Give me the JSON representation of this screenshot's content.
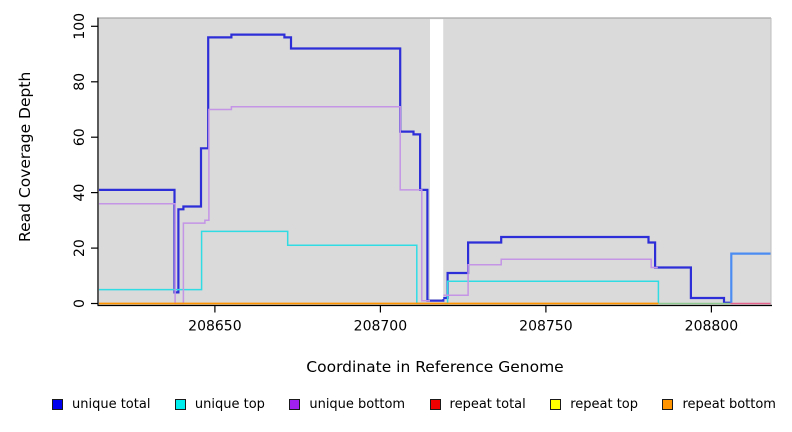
{
  "figure": {
    "xlabel": "Coordinate in Reference Genome",
    "ylabel": "Read Coverage Depth"
  },
  "legend": [
    {
      "label": "unique total",
      "color": "#0000ee"
    },
    {
      "label": "unique top",
      "color": "#00eeee"
    },
    {
      "label": "unique bottom",
      "color": "#a020f0"
    },
    {
      "label": "repeat total",
      "color": "#ee0000"
    },
    {
      "label": "repeat top",
      "color": "#ffff00"
    },
    {
      "label": "repeat bottom",
      "color": "#ff9300"
    }
  ],
  "chart_data": {
    "type": "line",
    "step": true,
    "title": "",
    "xlabel": "Coordinate in Reference Genome",
    "ylabel": "Read Coverage Depth",
    "xlim": [
      208615,
      208818
    ],
    "ylim": [
      0,
      103
    ],
    "x_ticks": [
      208650,
      208700,
      208750,
      208800
    ],
    "y_ticks": [
      0,
      20,
      40,
      60,
      80,
      100
    ],
    "grid": false,
    "legend_position": "bottom",
    "panel_background": "#dadada",
    "gap_region": {
      "x_start": 208715,
      "x_end": 208719,
      "note": "white vertical band with no data"
    },
    "series": [
      {
        "name": "unique total",
        "color": "#0000ee",
        "points": [
          [
            208615,
            41
          ],
          [
            208638,
            41
          ],
          [
            208638,
            4
          ],
          [
            208639,
            4
          ],
          [
            208639,
            34
          ],
          [
            208641,
            34
          ],
          [
            208641,
            35
          ],
          [
            208646,
            35
          ],
          [
            208646,
            56
          ],
          [
            208648,
            56
          ],
          [
            208648,
            96
          ],
          [
            208655,
            96
          ],
          [
            208655,
            97
          ],
          [
            208671,
            97
          ],
          [
            208671,
            96
          ],
          [
            208673,
            96
          ],
          [
            208673,
            92
          ],
          [
            208706,
            92
          ],
          [
            208706,
            62
          ],
          [
            208710,
            62
          ],
          [
            208710,
            61
          ],
          [
            208712,
            61
          ],
          [
            208712,
            41
          ],
          [
            208714,
            41
          ],
          [
            208714,
            1
          ],
          [
            208719,
            1
          ],
          [
            208719,
            2
          ],
          [
            208720,
            2
          ],
          [
            208720,
            11
          ],
          [
            208727,
            11
          ],
          [
            208727,
            22
          ],
          [
            208737,
            22
          ],
          [
            208737,
            24
          ],
          [
            208781,
            24
          ],
          [
            208781,
            22
          ],
          [
            208783,
            22
          ],
          [
            208783,
            13
          ],
          [
            208794,
            13
          ],
          [
            208794,
            2
          ],
          [
            208804,
            2
          ],
          [
            208804,
            0
          ],
          [
            208806,
            0
          ],
          [
            208806,
            18
          ],
          [
            208818,
            18
          ]
        ]
      },
      {
        "name": "unique top",
        "color": "#00eeee",
        "points": [
          [
            208615,
            5
          ],
          [
            208646,
            5
          ],
          [
            208646,
            26
          ],
          [
            208672,
            26
          ],
          [
            208672,
            21
          ],
          [
            208711,
            21
          ],
          [
            208711,
            0
          ],
          [
            208720,
            0
          ],
          [
            208720,
            8
          ],
          [
            208784,
            8
          ],
          [
            208784,
            0
          ],
          [
            208806,
            0
          ],
          [
            208806,
            18
          ],
          [
            208818,
            18
          ]
        ]
      },
      {
        "name": "unique bottom",
        "color": "#a020f0",
        "points": [
          [
            208615,
            36
          ],
          [
            208638,
            36
          ],
          [
            208638,
            0
          ],
          [
            208641,
            0
          ],
          [
            208641,
            29
          ],
          [
            208647,
            29
          ],
          [
            208647,
            30
          ],
          [
            208648,
            30
          ],
          [
            208648,
            70
          ],
          [
            208655,
            70
          ],
          [
            208655,
            71
          ],
          [
            208706,
            71
          ],
          [
            208706,
            41
          ],
          [
            208713,
            41
          ],
          [
            208713,
            1
          ],
          [
            208719,
            1
          ],
          [
            208719,
            3
          ],
          [
            208727,
            3
          ],
          [
            208727,
            14
          ],
          [
            208737,
            14
          ],
          [
            208737,
            16
          ],
          [
            208782,
            16
          ],
          [
            208782,
            13
          ],
          [
            208784,
            13
          ]
        ]
      },
      {
        "name": "repeat total",
        "color": "#ee0000",
        "points": [
          [
            208615,
            0
          ],
          [
            208818,
            0
          ]
        ]
      },
      {
        "name": "repeat top",
        "color": "#ffff00",
        "points": [
          [
            208615,
            0
          ],
          [
            208818,
            0
          ]
        ]
      },
      {
        "name": "repeat bottom",
        "color": "#ff9300",
        "points": [
          [
            208615,
            0
          ],
          [
            208784,
            0
          ]
        ]
      }
    ],
    "render_lines": [
      {
        "name": "unique-total-line",
        "color": "#2e2ed8",
        "w": 2.2,
        "pts": [
          [
            208615,
            41
          ],
          [
            208637.8,
            41
          ],
          [
            208637.8,
            4
          ],
          [
            208639,
            4
          ],
          [
            208639,
            34
          ],
          [
            208640.5,
            34
          ],
          [
            208640.5,
            35
          ],
          [
            208645.8,
            35
          ],
          [
            208645.8,
            56
          ],
          [
            208648,
            56
          ],
          [
            208648,
            96
          ],
          [
            208655,
            96
          ],
          [
            208655,
            97
          ],
          [
            208671,
            97
          ],
          [
            208671,
            96
          ],
          [
            208673,
            96
          ],
          [
            208673,
            92
          ],
          [
            208706,
            92
          ],
          [
            208706,
            62
          ],
          [
            208710,
            62
          ],
          [
            208710,
            61
          ],
          [
            208712,
            61
          ],
          [
            208712,
            41
          ],
          [
            208714.2,
            41
          ],
          [
            208714.2,
            1
          ],
          [
            208719,
            1
          ],
          [
            208719,
            2
          ],
          [
            208720.3,
            2
          ],
          [
            208720.3,
            11
          ],
          [
            208726.5,
            11
          ],
          [
            208726.5,
            22
          ],
          [
            208736.5,
            22
          ],
          [
            208736.5,
            24
          ],
          [
            208781,
            24
          ],
          [
            208781,
            22
          ],
          [
            208783,
            22
          ],
          [
            208783,
            13
          ],
          [
            208793.8,
            13
          ],
          [
            208793.8,
            2
          ],
          [
            208803.8,
            2
          ],
          [
            208803.8,
            0.3
          ],
          [
            208806,
            0.3
          ]
        ]
      },
      {
        "name": "unique-top-line-left",
        "color": "#30dce4",
        "w": 1.5,
        "pts": [
          [
            208615,
            5
          ],
          [
            208646,
            5
          ],
          [
            208646,
            26
          ],
          [
            208672,
            26
          ],
          [
            208672,
            21
          ],
          [
            208711,
            21
          ],
          [
            208711,
            0
          ],
          [
            208715,
            0
          ]
        ]
      },
      {
        "name": "unique-top-line-right",
        "color": "#30dce4",
        "w": 1.5,
        "pts": [
          [
            208719,
            0
          ],
          [
            208720.3,
            0
          ],
          [
            208720.3,
            8
          ],
          [
            208784,
            8
          ],
          [
            208784,
            0
          ]
        ]
      },
      {
        "name": "unique-bottom-line-left",
        "color": "#c494e6",
        "w": 1.5,
        "pts": [
          [
            208615,
            36
          ],
          [
            208638,
            36
          ],
          [
            208638,
            0
          ],
          [
            208640.5,
            0
          ],
          [
            208640.5,
            29
          ],
          [
            208647,
            29
          ],
          [
            208647,
            30
          ],
          [
            208648.2,
            30
          ],
          [
            208648.2,
            70
          ],
          [
            208655,
            70
          ],
          [
            208655,
            71
          ],
          [
            208706,
            71
          ],
          [
            208706,
            41
          ],
          [
            208712.5,
            41
          ],
          [
            208712.5,
            1
          ],
          [
            208715,
            1
          ]
        ]
      },
      {
        "name": "unique-bottom-line-right",
        "color": "#c494e6",
        "w": 1.5,
        "pts": [
          [
            208719,
            3
          ],
          [
            208726.5,
            3
          ],
          [
            208726.5,
            14
          ],
          [
            208736.5,
            14
          ],
          [
            208736.5,
            16
          ],
          [
            208781.8,
            16
          ],
          [
            208781.8,
            13
          ],
          [
            208783.8,
            13
          ]
        ]
      },
      {
        "name": "blend-green-line",
        "color": "#8fca92",
        "w": 1.5,
        "pts": [
          [
            208784,
            0
          ],
          [
            208805.8,
            0
          ]
        ]
      },
      {
        "name": "blend-pink-line",
        "color": "#e4648e",
        "w": 1.5,
        "pts": [
          [
            208805.8,
            0
          ],
          [
            208818,
            0
          ]
        ]
      },
      {
        "name": "repeat-bottom-line",
        "color": "#ff9300",
        "w": 1.7,
        "pts": [
          [
            208615,
            0
          ],
          [
            208784,
            0
          ]
        ]
      },
      {
        "name": "unique-total-line-right-blend",
        "color": "#4a8cf2",
        "w": 2.2,
        "pts": [
          [
            208806,
            0.3
          ],
          [
            208806,
            18
          ],
          [
            208818,
            18
          ]
        ]
      }
    ]
  }
}
